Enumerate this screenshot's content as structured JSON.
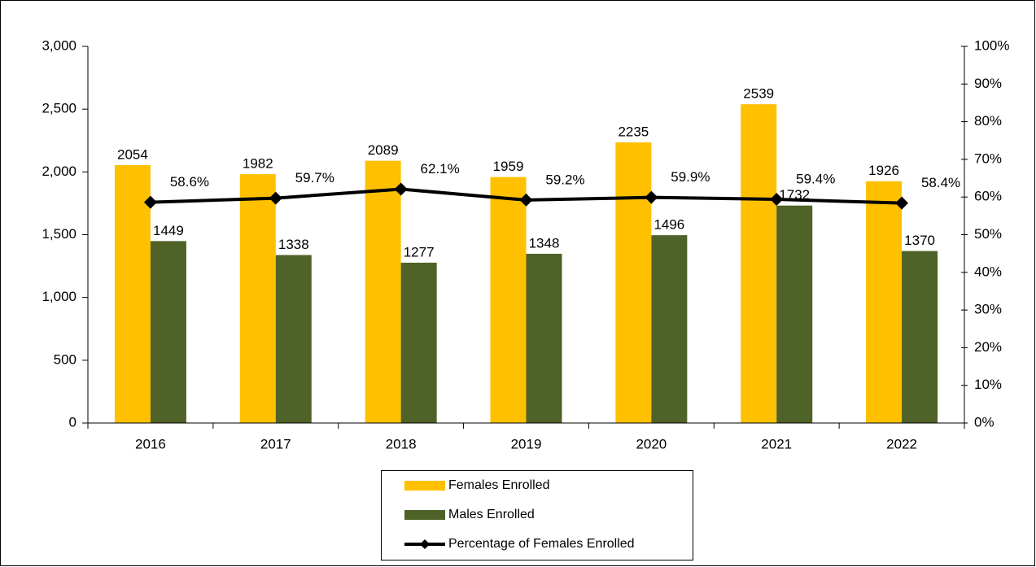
{
  "chart_data": {
    "type": "bar",
    "categories": [
      "2016",
      "2017",
      "2018",
      "2019",
      "2020",
      "2021",
      "2022"
    ],
    "series": [
      {
        "name": "Females Enrolled",
        "type": "bar",
        "color": "#FFC000",
        "values": [
          2054,
          1982,
          2089,
          1959,
          2235,
          2539,
          1926
        ]
      },
      {
        "name": "Males Enrolled",
        "type": "bar",
        "color": "#4F6228",
        "values": [
          1449,
          1338,
          1277,
          1348,
          1496,
          1732,
          1370
        ]
      },
      {
        "name": "Percentage of Females Enrolled",
        "type": "line",
        "axis": "y2",
        "color": "#000000",
        "values": [
          58.6,
          59.7,
          62.1,
          59.2,
          59.9,
          59.4,
          58.4
        ],
        "value_labels": [
          "58.6%",
          "59.7%",
          "62.1%",
          "59.2%",
          "59.9%",
          "59.4%",
          "58.4%"
        ]
      }
    ],
    "ylim": [
      0,
      3000
    ],
    "yticks": [
      0,
      500,
      {
        "value": 1000,
        "label": "1,000"
      },
      {
        "value": 1500,
        "label": "1,500"
      },
      {
        "value": 2000,
        "label": "2,000"
      },
      {
        "value": 2500,
        "label": "2,500"
      },
      {
        "value": 3000,
        "label": "3,000"
      }
    ],
    "y2lim": [
      0,
      100
    ],
    "y2ticks": [
      {
        "value": 0,
        "label": "0%"
      },
      {
        "value": 10,
        "label": "10%"
      },
      {
        "value": 20,
        "label": "20%"
      },
      {
        "value": 30,
        "label": "30%"
      },
      {
        "value": 40,
        "label": "40%"
      },
      {
        "value": 50,
        "label": "50%"
      },
      {
        "value": 60,
        "label": "60%"
      },
      {
        "value": 70,
        "label": "70%"
      },
      {
        "value": 80,
        "label": "80%"
      },
      {
        "value": 90,
        "label": "90%"
      },
      {
        "value": 100,
        "label": "100%"
      }
    ],
    "grid": false,
    "legend": "bottom"
  }
}
